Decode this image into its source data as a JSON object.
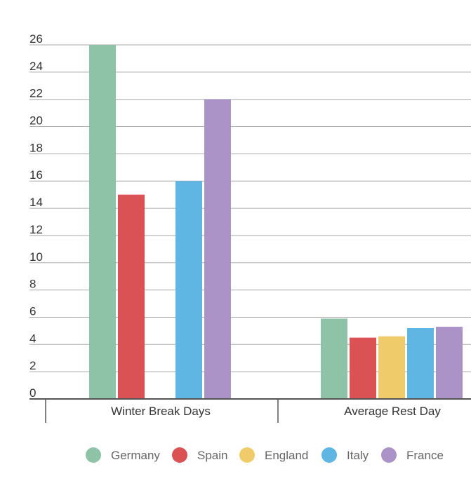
{
  "chart_data": {
    "type": "bar",
    "title": "",
    "xlabel": "",
    "ylabel": "",
    "ylim": [
      0,
      26
    ],
    "yticks": [
      0,
      2,
      4,
      6,
      8,
      10,
      12,
      14,
      16,
      18,
      20,
      22,
      24,
      26
    ],
    "grid": true,
    "legend_position": "bottom",
    "categories": [
      "Winter Break Days",
      "Average Rest Day"
    ],
    "series": [
      {
        "name": "Germany",
        "color": "#8fc3a8",
        "values": [
          26,
          5.9
        ]
      },
      {
        "name": "Spain",
        "color": "#db5254",
        "values": [
          15,
          4.5
        ]
      },
      {
        "name": "England",
        "color": "#efcb6a",
        "values": [
          0,
          4.6
        ]
      },
      {
        "name": "Italy",
        "color": "#5fb6e2",
        "values": [
          16,
          5.2
        ]
      },
      {
        "name": "France",
        "color": "#ab92c7",
        "values": [
          22,
          5.3
        ]
      }
    ],
    "colors": {
      "grid": "#aaaaaa",
      "axis": "#555555",
      "text": "#333333",
      "legend_text": "#666666"
    }
  }
}
